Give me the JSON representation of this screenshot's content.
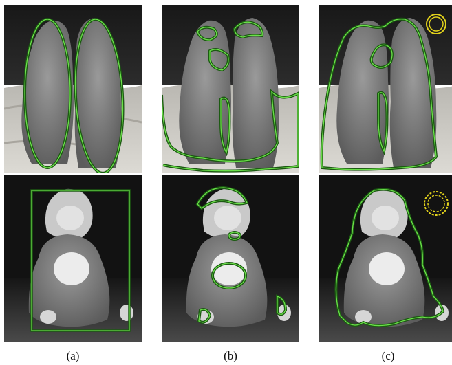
{
  "figure": {
    "captions": [
      "(a)",
      "(b)",
      "(c)"
    ],
    "rows": [
      "prairie-dogs",
      "plush-monkey"
    ],
    "colors": {
      "contour_outer": "#1c5a12",
      "contour_inner": "#6be04a",
      "init_ring": "#e2d21c",
      "photo_dark": "#141414",
      "photo_ground": "#c9c6bf"
    }
  }
}
